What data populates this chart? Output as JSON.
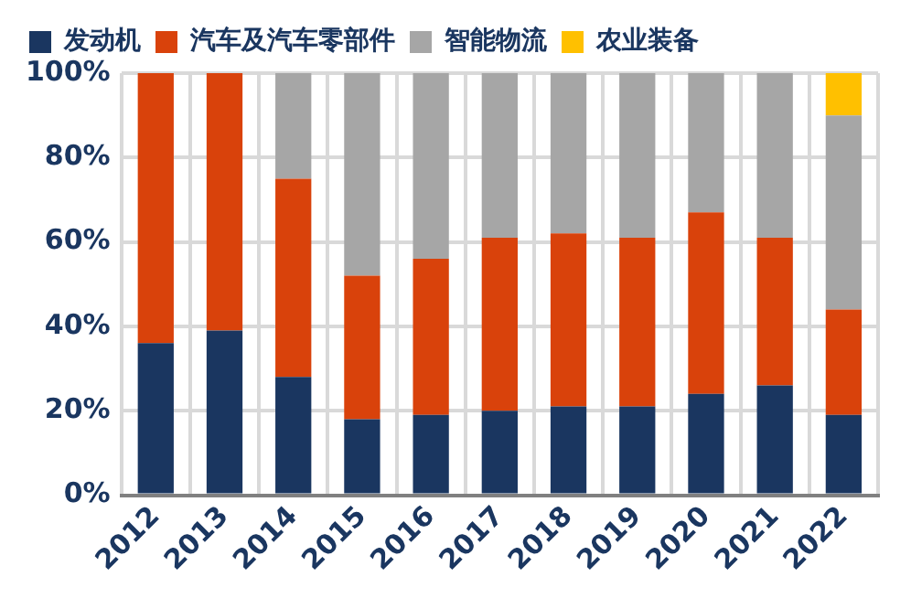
{
  "chart_data": {
    "type": "bar",
    "stacked": true,
    "categories": [
      "2012",
      "2013",
      "2014",
      "2015",
      "2016",
      "2017",
      "2018",
      "2019",
      "2020",
      "2021",
      "2022"
    ],
    "series": [
      {
        "name": "发动机",
        "color": "#1a3660",
        "values": [
          36,
          39,
          28,
          18,
          19,
          20,
          21,
          21,
          24,
          26,
          19
        ]
      },
      {
        "name": "汽车及汽车零部件",
        "color": "#d9420b",
        "values": [
          64,
          61,
          47,
          34,
          37,
          41,
          41,
          40,
          43,
          35,
          25
        ]
      },
      {
        "name": "智能物流",
        "color": "#a6a6a6",
        "values": [
          0,
          0,
          25,
          48,
          44,
          39,
          38,
          39,
          33,
          39,
          46
        ]
      },
      {
        "name": "农业装备",
        "color": "#ffc000",
        "values": [
          0,
          0,
          0,
          0,
          0,
          0,
          0,
          0,
          0,
          0,
          10
        ]
      }
    ],
    "ylim": [
      0,
      100
    ],
    "yticks": [
      {
        "value": 0,
        "label": "0%"
      },
      {
        "value": 20,
        "label": "20%"
      },
      {
        "value": 40,
        "label": "40%"
      },
      {
        "value": 60,
        "label": "60%"
      },
      {
        "value": 80,
        "label": "80%"
      },
      {
        "value": 100,
        "label": "100%"
      }
    ],
    "grid": true,
    "legend": "top"
  }
}
